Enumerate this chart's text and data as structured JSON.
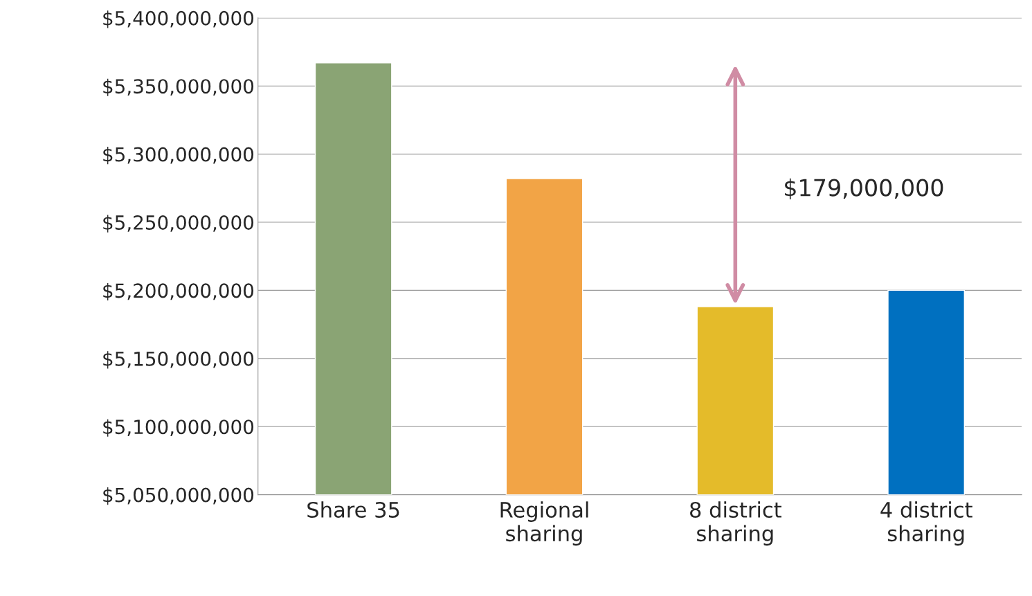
{
  "chart_data": {
    "type": "bar",
    "categories": [
      "Share 35",
      "Regional\nsharing",
      "8 district\nsharing",
      "4 district\nsharing"
    ],
    "values": [
      5367000000,
      5282000000,
      5188000000,
      5200000000
    ],
    "colors": [
      "#8aa474",
      "#f2a446",
      "#e4bb2a",
      "#0070c0"
    ],
    "ylim": [
      5050000000,
      5400000000
    ],
    "yticks": [
      {
        "value": 5050000000,
        "label": "$5,050,000,000"
      },
      {
        "value": 5100000000,
        "label": "$5,100,000,000"
      },
      {
        "value": 5150000000,
        "label": "$5,150,000,000"
      },
      {
        "value": 5200000000,
        "label": "$5,200,000,000"
      },
      {
        "value": 5250000000,
        "label": "$5,250,000,000"
      },
      {
        "value": 5300000000,
        "label": "$5,300,000,000"
      },
      {
        "value": 5350000000,
        "label": "$5,350,000,000"
      },
      {
        "value": 5400000000,
        "label": "$5,400,000,000"
      }
    ],
    "grid": "y",
    "annotations": [
      "$179,000,000"
    ]
  }
}
